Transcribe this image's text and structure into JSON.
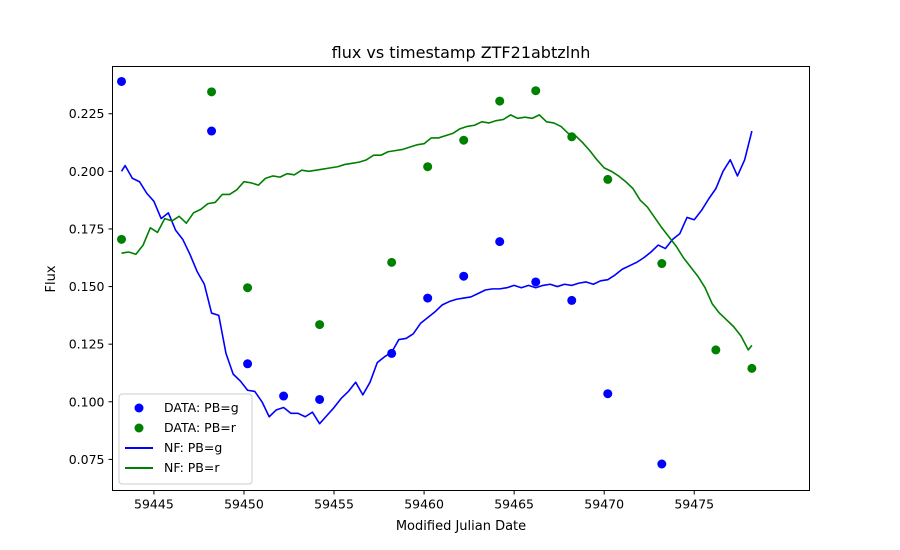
{
  "chart_data": {
    "type": "scatter",
    "title": "flux vs timestamp ZTF21abtzlnh",
    "xlabel": "Modified Julian Date",
    "ylabel": "Flux",
    "xlim": [
      59442.7,
      59481.4
    ],
    "ylim": [
      0.0615,
      0.2455
    ],
    "xticks": [
      59445,
      59450,
      59455,
      59460,
      59465,
      59470,
      59475
    ],
    "yticks": [
      0.075,
      0.1,
      0.125,
      0.15,
      0.175,
      0.2,
      0.225
    ],
    "grid": false,
    "legend_position": "lower-left",
    "series": [
      {
        "name": "DATA: PB=g",
        "kind": "scatter",
        "color": "#0000ff",
        "x": [
          59443.2,
          59448.2,
          59450.2,
          59452.2,
          59454.2,
          59458.2,
          59460.2,
          59462.2,
          59464.2,
          59466.2,
          59468.2,
          59470.2,
          59473.2
        ],
        "y": [
          0.239,
          0.2175,
          0.1165,
          0.1025,
          0.101,
          0.121,
          0.145,
          0.1545,
          0.1695,
          0.152,
          0.144,
          0.1035,
          0.073
        ]
      },
      {
        "name": "DATA: PB=r",
        "kind": "scatter",
        "color": "#008000",
        "x": [
          59443.2,
          59448.2,
          59450.2,
          59454.2,
          59458.2,
          59460.2,
          59462.2,
          59464.2,
          59466.2,
          59468.2,
          59470.2,
          59473.2,
          59476.2,
          59478.2
        ],
        "y": [
          0.1705,
          0.2345,
          0.1495,
          0.1335,
          0.1605,
          0.202,
          0.2135,
          0.2305,
          0.235,
          0.215,
          0.1965,
          0.16,
          0.1225,
          0.1145
        ]
      },
      {
        "name": "NF: PB=g",
        "kind": "line",
        "color": "#0000ff",
        "x": [
          59443.2,
          59443.4,
          59443.8,
          59444.2,
          59444.6,
          59445.0,
          59445.4,
          59445.8,
          59446.2,
          59446.6,
          59447.0,
          59447.4,
          59447.8,
          59448.2,
          59448.6,
          59449.0,
          59449.4,
          59449.8,
          59450.2,
          59450.6,
          59451.0,
          59451.4,
          59451.8,
          59452.2,
          59452.6,
          59453.0,
          59453.4,
          59453.8,
          59454.2,
          59454.6,
          59455.0,
          59455.4,
          59455.8,
          59456.2,
          59456.6,
          59457.0,
          59457.4,
          59457.8,
          59458.2,
          59458.6,
          59459.0,
          59459.4,
          59459.8,
          59460.2,
          59460.6,
          59461.0,
          59461.4,
          59461.8,
          59462.2,
          59462.6,
          59463.0,
          59463.4,
          59463.8,
          59464.2,
          59464.6,
          59465.0,
          59465.4,
          59465.8,
          59466.2,
          59466.6,
          59467.0,
          59467.4,
          59467.8,
          59468.2,
          59468.6,
          59469.0,
          59469.4,
          59469.8,
          59470.2,
          59470.6,
          59471.0,
          59471.4,
          59471.8,
          59472.2,
          59472.6,
          59473.0,
          59473.4,
          59473.8,
          59474.2,
          59474.6,
          59475.0,
          59475.4,
          59475.8,
          59476.2,
          59476.6,
          59477.0,
          59477.4,
          59477.8,
          59478.2
        ],
        "y": [
          0.2,
          0.2025,
          0.197,
          0.1955,
          0.1905,
          0.187,
          0.1795,
          0.182,
          0.1745,
          0.1705,
          0.164,
          0.1565,
          0.151,
          0.1385,
          0.1375,
          0.121,
          0.112,
          0.109,
          0.105,
          0.1045,
          0.1,
          0.0935,
          0.0965,
          0.0975,
          0.095,
          0.095,
          0.0935,
          0.0955,
          0.0905,
          0.094,
          0.0975,
          0.1015,
          0.1045,
          0.1085,
          0.103,
          0.1085,
          0.117,
          0.1195,
          0.1215,
          0.127,
          0.1275,
          0.1295,
          0.134,
          0.1365,
          0.139,
          0.142,
          0.1435,
          0.1445,
          0.145,
          0.1455,
          0.147,
          0.1485,
          0.149,
          0.149,
          0.1495,
          0.1505,
          0.1495,
          0.1505,
          0.1495,
          0.1505,
          0.151,
          0.15,
          0.151,
          0.1505,
          0.1515,
          0.152,
          0.151,
          0.1525,
          0.153,
          0.155,
          0.1575,
          0.159,
          0.1605,
          0.1625,
          0.165,
          0.168,
          0.1665,
          0.1705,
          0.173,
          0.18,
          0.179,
          0.183,
          0.188,
          0.1925,
          0.2,
          0.205,
          0.198,
          0.205,
          0.2175
        ]
      },
      {
        "name": "NF: PB=r",
        "kind": "line",
        "color": "#008000",
        "x": [
          59443.2,
          59443.6,
          59444.0,
          59444.4,
          59444.8,
          59445.2,
          59445.6,
          59446.0,
          59446.4,
          59446.8,
          59447.2,
          59447.6,
          59448.0,
          59448.4,
          59448.8,
          59449.2,
          59449.6,
          59450.0,
          59450.4,
          59450.8,
          59451.2,
          59451.6,
          59452.0,
          59452.4,
          59452.8,
          59453.2,
          59453.6,
          59454.0,
          59454.4,
          59454.8,
          59455.2,
          59455.6,
          59456.0,
          59456.4,
          59456.8,
          59457.2,
          59457.6,
          59458.0,
          59458.4,
          59458.8,
          59459.2,
          59459.6,
          59460.0,
          59460.4,
          59460.8,
          59461.2,
          59461.6,
          59462.0,
          59462.4,
          59462.8,
          59463.2,
          59463.6,
          59464.0,
          59464.4,
          59464.8,
          59465.2,
          59465.6,
          59466.0,
          59466.4,
          59466.8,
          59467.2,
          59467.6,
          59468.0,
          59468.4,
          59468.8,
          59469.2,
          59469.6,
          59470.0,
          59470.4,
          59470.8,
          59471.2,
          59471.6,
          59472.0,
          59472.4,
          59472.8,
          59473.2,
          59473.6,
          59474.0,
          59474.4,
          59474.8,
          59475.2,
          59475.6,
          59476.0,
          59476.4,
          59476.8,
          59477.2,
          59477.6,
          59478.0,
          59478.2
        ],
        "y": [
          0.1645,
          0.165,
          0.164,
          0.168,
          0.1755,
          0.1735,
          0.1795,
          0.1785,
          0.1805,
          0.1775,
          0.182,
          0.1835,
          0.186,
          0.1865,
          0.19,
          0.19,
          0.192,
          0.1955,
          0.195,
          0.194,
          0.197,
          0.198,
          0.1975,
          0.199,
          0.1985,
          0.2005,
          0.2,
          0.2005,
          0.201,
          0.2015,
          0.202,
          0.203,
          0.2035,
          0.204,
          0.205,
          0.207,
          0.207,
          0.2085,
          0.209,
          0.2095,
          0.2105,
          0.2115,
          0.212,
          0.2145,
          0.2145,
          0.2155,
          0.2165,
          0.2185,
          0.2195,
          0.22,
          0.2215,
          0.221,
          0.222,
          0.2225,
          0.2245,
          0.223,
          0.2235,
          0.223,
          0.2245,
          0.2215,
          0.221,
          0.2195,
          0.2165,
          0.2155,
          0.2125,
          0.209,
          0.205,
          0.2015,
          0.2,
          0.198,
          0.1955,
          0.1925,
          0.1875,
          0.1845,
          0.18,
          0.1755,
          0.1715,
          0.1675,
          0.1625,
          0.1585,
          0.1545,
          0.1495,
          0.1425,
          0.1385,
          0.1355,
          0.1325,
          0.1285,
          0.1225,
          0.1245
        ]
      }
    ]
  }
}
